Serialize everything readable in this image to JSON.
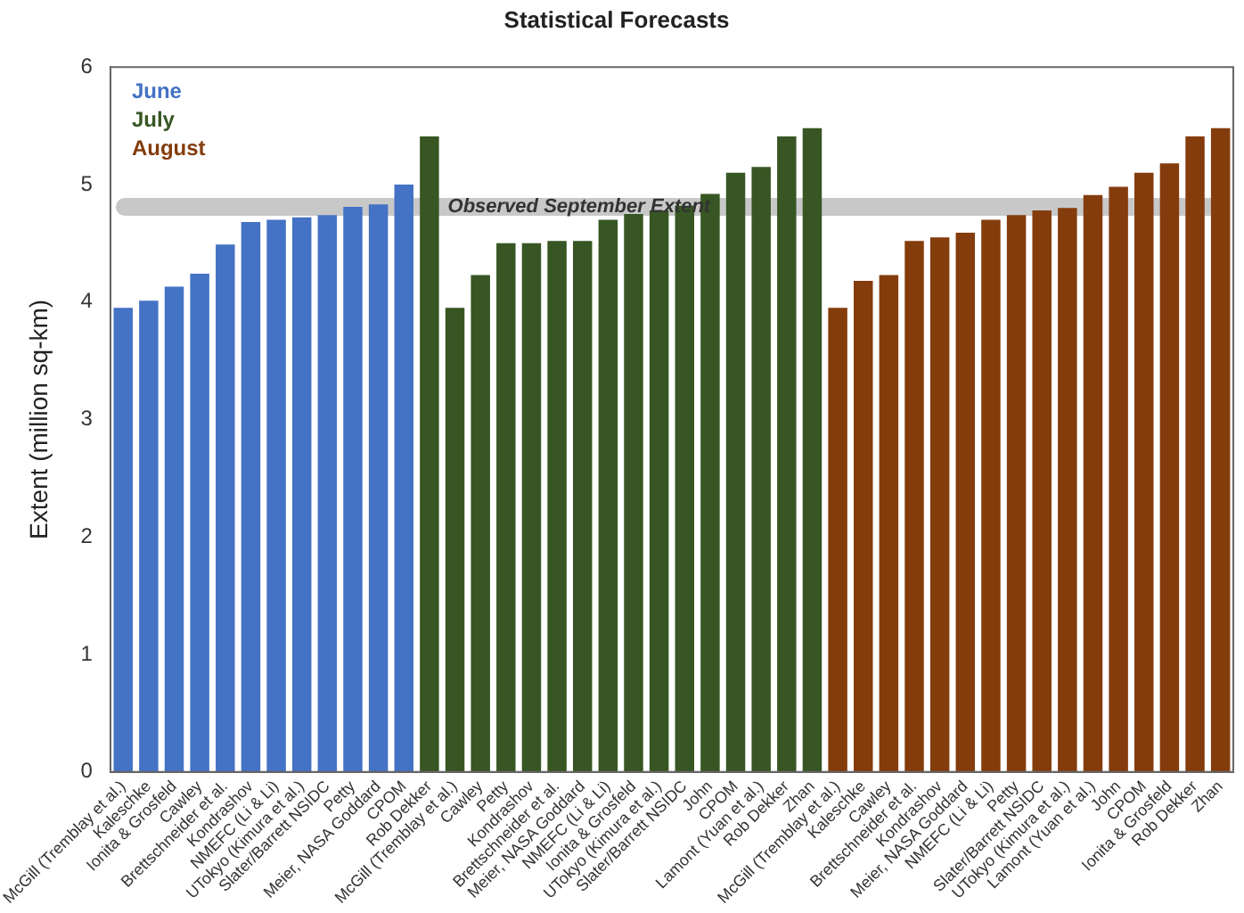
{
  "chart_data": {
    "type": "bar",
    "title": "Statistical Forecasts",
    "ylabel": "Extent (million sq-km)",
    "categories": [
      "McGill (Tremblay et al.)",
      "Kaleschke",
      "Ionita & Grosfeld",
      "Cawley",
      "Brettschneider et al.",
      "Kondrashov",
      "NMEFC (Li & Li)",
      "UTokyo (Kimura et al.)",
      "Slater/Barrett NSIDC",
      "Petty",
      "Meier, NASA Goddard",
      "CPOM",
      "Rob Dekker",
      "McGill (Tremblay et al.)",
      "Cawley",
      "Petty",
      "Kondrashov",
      "Brettschneider et al.",
      "Meier, NASA Goddard",
      "NMEFC (Li & Li)",
      "Ionita & Grosfeld",
      "UTokyo (Kimura et al.)",
      "Slater/Barrett NSIDC",
      "John",
      "CPOM",
      "Lamont (Yuan et al.)",
      "Rob Dekker",
      "Zhan",
      "McGill (Tremblay et al.)",
      "Kaleschke",
      "Cawley",
      "Brettschneider et al.",
      "Kondrashov",
      "Meier, NASA Goddard",
      "NMEFC (Li & Li)",
      "Petty",
      "Slater/Barrett NSIDC",
      "UTokyo (Kimura et al.)",
      "Lamont (Yuan et al.)",
      "John",
      "CPOM",
      "Ionita & Grosfeld",
      "Rob Dekker",
      "Zhan"
    ],
    "series": [
      {
        "name": "June",
        "color": "#4472c4",
        "values": [
          3.95,
          4.01,
          4.13,
          4.24,
          4.49,
          4.68,
          4.7,
          4.72,
          4.74,
          4.81,
          4.83,
          5.0,
          null,
          null,
          null,
          null,
          null,
          null,
          null,
          null,
          null,
          null,
          null,
          null,
          null,
          null,
          null,
          null,
          null,
          null,
          null,
          null,
          null,
          null,
          null,
          null,
          null,
          null,
          null,
          null,
          null,
          null,
          null,
          null
        ]
      },
      {
        "name": "July",
        "color": "#375623",
        "values": [
          null,
          null,
          null,
          null,
          null,
          null,
          null,
          null,
          null,
          null,
          null,
          null,
          5.41,
          3.95,
          4.23,
          4.5,
          4.5,
          4.52,
          4.52,
          4.7,
          4.75,
          4.78,
          4.82,
          4.92,
          5.1,
          5.15,
          5.41,
          5.48,
          null,
          null,
          null,
          null,
          null,
          null,
          null,
          null,
          null,
          null,
          null,
          null,
          null,
          null,
          null,
          null
        ]
      },
      {
        "name": "August",
        "color": "#843c0c",
        "values": [
          null,
          null,
          null,
          null,
          null,
          null,
          null,
          null,
          null,
          null,
          null,
          null,
          null,
          null,
          null,
          null,
          null,
          null,
          null,
          null,
          null,
          null,
          null,
          null,
          null,
          null,
          null,
          null,
          3.95,
          4.18,
          4.23,
          4.52,
          4.55,
          4.59,
          4.7,
          4.74,
          4.78,
          4.8,
          4.91,
          4.98,
          5.1,
          5.18,
          5.41,
          5.48
        ]
      }
    ],
    "ylim": [
      0,
      6
    ],
    "yticks": [
      0,
      1,
      2,
      3,
      4,
      5,
      6
    ],
    "grid": false,
    "legend": "top left",
    "ref_lines": [
      {
        "axis": "y",
        "value": 4.81,
        "label": "Observed September Extent",
        "color": "#c8c8c8"
      }
    ]
  }
}
